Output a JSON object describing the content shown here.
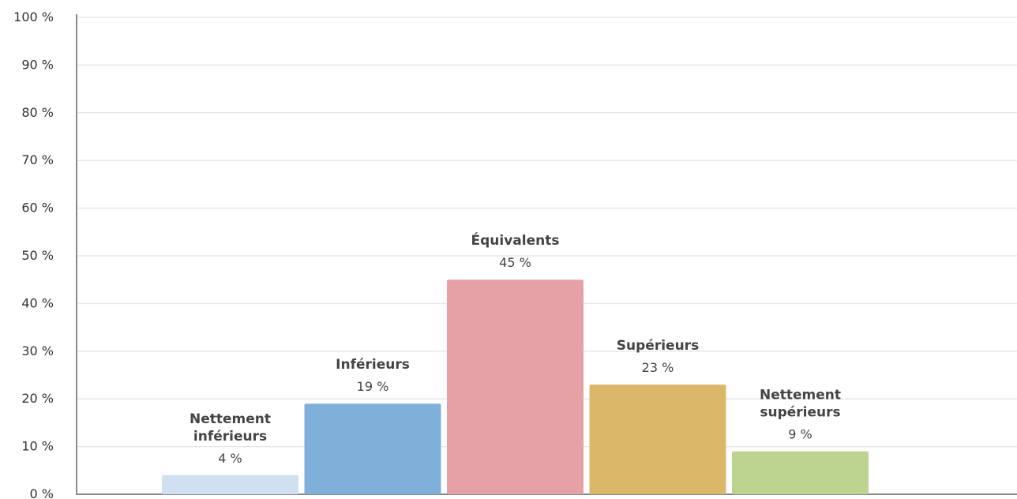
{
  "chart_data": {
    "type": "bar",
    "title": "",
    "xlabel": "",
    "ylabel": "",
    "ylim": [
      0,
      100
    ],
    "yticks": [
      "0 %",
      "10 %",
      "20 %",
      "30 %",
      "40 %",
      "50 %",
      "60 %",
      "70 %",
      "80 %",
      "90 %",
      "100 %"
    ],
    "grid": true,
    "categories": [
      [
        "Nettement",
        "inférieurs"
      ],
      [
        "Inférieurs"
      ],
      [
        "Équivalents"
      ],
      [
        "Supérieurs"
      ],
      [
        "Nettement",
        "supérieurs"
      ]
    ],
    "values": [
      4,
      19,
      45,
      23,
      9
    ],
    "value_labels": [
      "4 %",
      "19 %",
      "45 %",
      "23 %",
      "9 %"
    ],
    "colors": [
      "#cfe0f0",
      "#7fb0da",
      "#e6a1a6",
      "#dbb76a",
      "#bcd48f"
    ]
  }
}
